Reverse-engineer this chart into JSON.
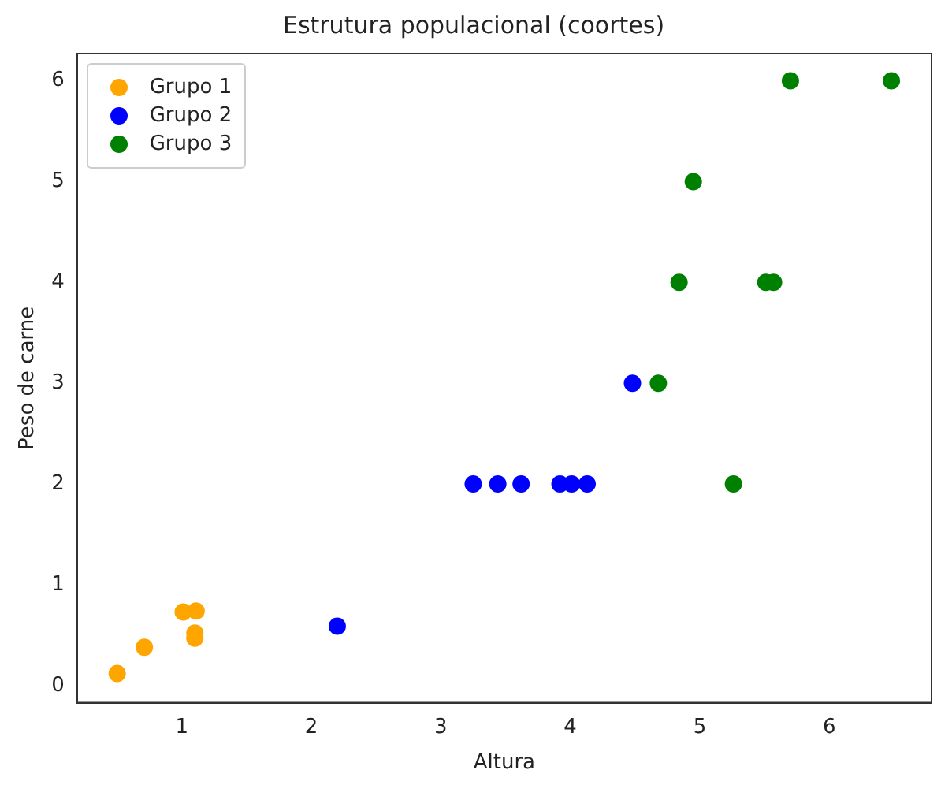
{
  "chart_data": {
    "type": "scatter",
    "title": "Estrutura populacional (coortes)",
    "xlabel": "Altura",
    "ylabel": "Peso de carne",
    "series": [
      {
        "name": "Grupo 1",
        "color": "#ffa500",
        "x": [
          0.5,
          0.71,
          1.01,
          1.11,
          1.1,
          1.1
        ],
        "values": [
          0.12,
          0.38,
          0.73,
          0.74,
          0.52,
          0.47
        ]
      },
      {
        "name": "Grupo 2",
        "color": "#0000ff",
        "x": [
          2.2,
          3.25,
          3.44,
          3.62,
          3.92,
          4.01,
          4.13,
          4.48
        ],
        "values": [
          0.59,
          2,
          2,
          2,
          2,
          2,
          2,
          3
        ]
      },
      {
        "name": "Grupo 3",
        "color": "#008000",
        "x": [
          4.68,
          4.84,
          4.95,
          5.26,
          5.51,
          5.57,
          5.7,
          6.48
        ],
        "values": [
          3,
          4,
          5,
          2,
          4,
          4,
          6,
          6
        ]
      }
    ],
    "xlim": [
      0.19,
      6.79
    ],
    "ylim": [
      -0.17,
      6.27
    ],
    "xticks": [
      1,
      2,
      3,
      4,
      5,
      6
    ],
    "yticks": [
      0,
      1,
      2,
      3,
      4,
      5,
      6
    ],
    "legend": "top left",
    "marker": "circle",
    "grid": false
  }
}
